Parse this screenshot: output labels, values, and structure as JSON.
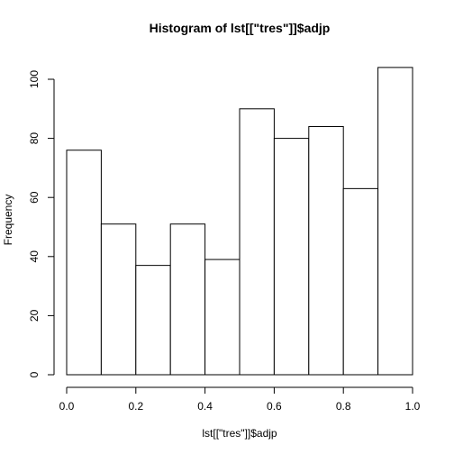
{
  "chart_data": {
    "type": "bar",
    "title": "Histogram of lst[[\"tres\"]]$adjp",
    "xlabel": "lst[[\"tres\"]]$adjp",
    "ylabel": "Frequency",
    "bins": [
      {
        "start": 0.0,
        "end": 0.1,
        "count": 76
      },
      {
        "start": 0.1,
        "end": 0.2,
        "count": 51
      },
      {
        "start": 0.2,
        "end": 0.3,
        "count": 37
      },
      {
        "start": 0.3,
        "end": 0.4,
        "count": 51
      },
      {
        "start": 0.4,
        "end": 0.5,
        "count": 39
      },
      {
        "start": 0.5,
        "end": 0.6,
        "count": 90
      },
      {
        "start": 0.6,
        "end": 0.7,
        "count": 80
      },
      {
        "start": 0.7,
        "end": 0.8,
        "count": 84
      },
      {
        "start": 0.8,
        "end": 0.9,
        "count": 63
      },
      {
        "start": 0.9,
        "end": 1.0,
        "count": 104
      }
    ],
    "xlim": [
      0,
      1
    ],
    "ylim": [
      0,
      104
    ],
    "x_ticks": [
      "0.0",
      "0.2",
      "0.4",
      "0.6",
      "0.8",
      "1.0"
    ],
    "y_ticks": [
      "0",
      "20",
      "40",
      "60",
      "80",
      "100"
    ],
    "grid": false,
    "bar_fill": "#ffffff",
    "bar_stroke": "#000000"
  }
}
